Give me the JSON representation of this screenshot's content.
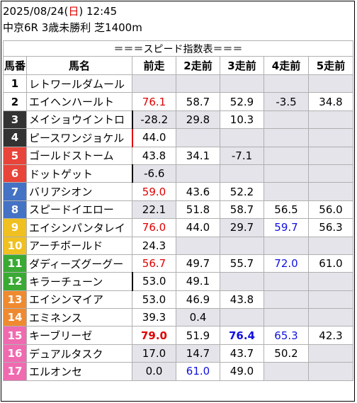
{
  "header": {
    "date": "2025/08/24",
    "weekday_open": "(",
    "weekday": "日",
    "weekday_close": ")",
    "time": "12:45",
    "race": "中京6R 3歳未勝利 芝1400m"
  },
  "table": {
    "title": "＝＝＝スピード指数表＝＝＝",
    "columns": [
      "馬番",
      "馬名",
      "前走",
      "2走前",
      "3走前",
      "4走前",
      "5走前"
    ],
    "colors": {
      "gate1": "#ffffff",
      "gate2": "#ffffff",
      "gate3": "#333333",
      "gate4": "#333333",
      "gate5": "#e8443a",
      "gate6": "#e8443a",
      "gate7": "#4472c4",
      "gate8": "#4472c4",
      "gate9": "#f0c020",
      "gate10": "#f0c020",
      "gate11": "#3aaa35",
      "gate12": "#3aaa35",
      "gate13": "#f08a30",
      "gate14": "#f08a30",
      "gate15": "#f06ab0",
      "gate16": "#f06ab0",
      "gate17": "#f06ab0"
    },
    "rows": [
      {
        "num": "1",
        "name": "レトワールダムール",
        "v": [
          "",
          "",
          "",
          "",
          ""
        ]
      },
      {
        "num": "2",
        "name": "エイヘンハールト",
        "v": [
          "76.1",
          "58.7",
          "52.9",
          "-3.5",
          "34.8"
        ]
      },
      {
        "num": "3",
        "name": "メイショウイントロ",
        "v": [
          "-28.2",
          "29.8",
          "10.3",
          "",
          ""
        ]
      },
      {
        "num": "4",
        "name": "ピースワンジョケル",
        "v": [
          "44.0",
          "",
          "",
          "",
          ""
        ]
      },
      {
        "num": "5",
        "name": "ゴールドストーム",
        "v": [
          "43.8",
          "34.1",
          "-7.1",
          "",
          ""
        ]
      },
      {
        "num": "6",
        "name": "ドットゲット",
        "v": [
          "-6.6",
          "",
          "",
          "",
          ""
        ]
      },
      {
        "num": "7",
        "name": "バリアシオン",
        "v": [
          "59.0",
          "43.6",
          "52.2",
          "",
          ""
        ]
      },
      {
        "num": "8",
        "name": "スピードイエロー",
        "v": [
          "22.1",
          "51.8",
          "58.7",
          "56.5",
          "56.0"
        ]
      },
      {
        "num": "9",
        "name": "エイシンパンタレイ",
        "v": [
          "76.0",
          "44.0",
          "29.7",
          "59.7",
          "56.3"
        ]
      },
      {
        "num": "10",
        "name": "アーチボールド",
        "v": [
          "24.3",
          "",
          "",
          "",
          ""
        ]
      },
      {
        "num": "11",
        "name": "ダディーズグーグー",
        "v": [
          "56.7",
          "49.7",
          "55.7",
          "72.0",
          "61.0"
        ]
      },
      {
        "num": "12",
        "name": "キラーチューン",
        "v": [
          "53.0",
          "49.1",
          "",
          "",
          ""
        ]
      },
      {
        "num": "13",
        "name": "エイシンマイア",
        "v": [
          "53.0",
          "46.9",
          "43.8",
          "",
          ""
        ]
      },
      {
        "num": "14",
        "name": "エミネンス",
        "v": [
          "39.3",
          "0.4",
          "",
          "",
          ""
        ]
      },
      {
        "num": "15",
        "name": "キーブリーゼ",
        "v": [
          "79.0",
          "51.9",
          "76.4",
          "65.3",
          "42.3"
        ]
      },
      {
        "num": "16",
        "name": "デュアルタスク",
        "v": [
          "17.0",
          "14.7",
          "43.7",
          "50.2",
          ""
        ]
      },
      {
        "num": "17",
        "name": "エルオンセ",
        "v": [
          "0.0",
          "61.0",
          "49.0",
          "",
          ""
        ]
      }
    ]
  }
}
